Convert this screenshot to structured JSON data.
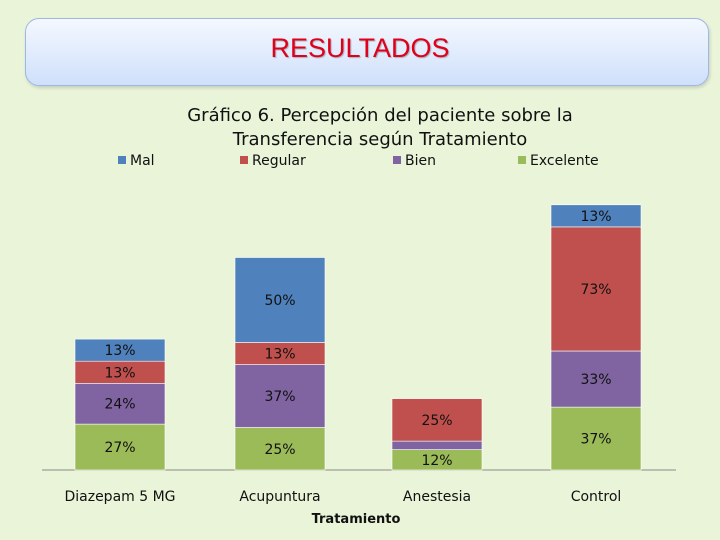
{
  "header": {
    "title": "RESULTADOS"
  },
  "colors": {
    "Mal": "#4f81bd",
    "Regular": "#c0504d",
    "Bien": "#8064a2",
    "Excelente": "#9bbb59"
  },
  "chart_data": {
    "type": "bar",
    "stacked": true,
    "title": "Gráfico 6. Percepción del paciente sobre la Transferencia según Tratamiento",
    "xlabel": "Tratamiento",
    "ylabel": "",
    "categories": [
      "Diazepam 5 MG",
      "Acupuntura",
      "Anestesia",
      "Control"
    ],
    "series": [
      {
        "name": "Excelente",
        "values": [
          27,
          25,
          12,
          37
        ],
        "labels": [
          "27%",
          "25%",
          "12%",
          "37%"
        ]
      },
      {
        "name": "Bien",
        "values": [
          24,
          37,
          5,
          33
        ],
        "labels": [
          "24%",
          "37%",
          "5%",
          "33%"
        ]
      },
      {
        "name": "Regular",
        "values": [
          13,
          13,
          25,
          73
        ],
        "labels": [
          "13%",
          "13%",
          "25%",
          "73%"
        ]
      },
      {
        "name": "Mal",
        "values": [
          13,
          50,
          0,
          13
        ],
        "labels": [
          "13%",
          "50%",
          "",
          "13%"
        ]
      }
    ],
    "legend": {
      "position": "top",
      "order": [
        "Mal",
        "Regular",
        "Bien",
        "Excelente"
      ]
    },
    "grid": false
  }
}
